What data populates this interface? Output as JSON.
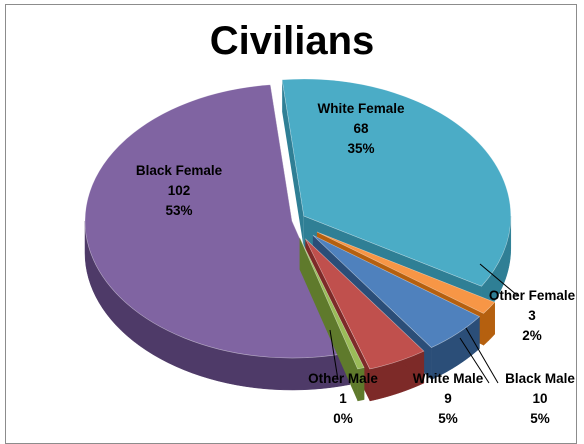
{
  "chart_data": {
    "type": "pie",
    "title": "Civilians",
    "slices": [
      {
        "label": "White Female",
        "value": 68,
        "percent": "35%",
        "color": "#4bacc6",
        "side": "#2f7f95"
      },
      {
        "label": "Other Female",
        "value": 3,
        "percent": "2%",
        "color": "#f79646",
        "side": "#b5600f"
      },
      {
        "label": "Black Male",
        "value": 10,
        "percent": "5%",
        "color": "#4f81bd",
        "side": "#2b4e78"
      },
      {
        "label": "White Male",
        "value": 9,
        "percent": "5%",
        "color": "#c0504d",
        "side": "#7d2a28"
      },
      {
        "label": "Other Male",
        "value": 1,
        "percent": "0%",
        "color": "#9bbb59",
        "side": "#5f7a2c"
      },
      {
        "label": "Black Female",
        "value": 102,
        "percent": "53%",
        "color": "#8064a2",
        "side": "#4e3a68"
      }
    ],
    "legend": "none",
    "three_d": true,
    "exploded": true
  }
}
